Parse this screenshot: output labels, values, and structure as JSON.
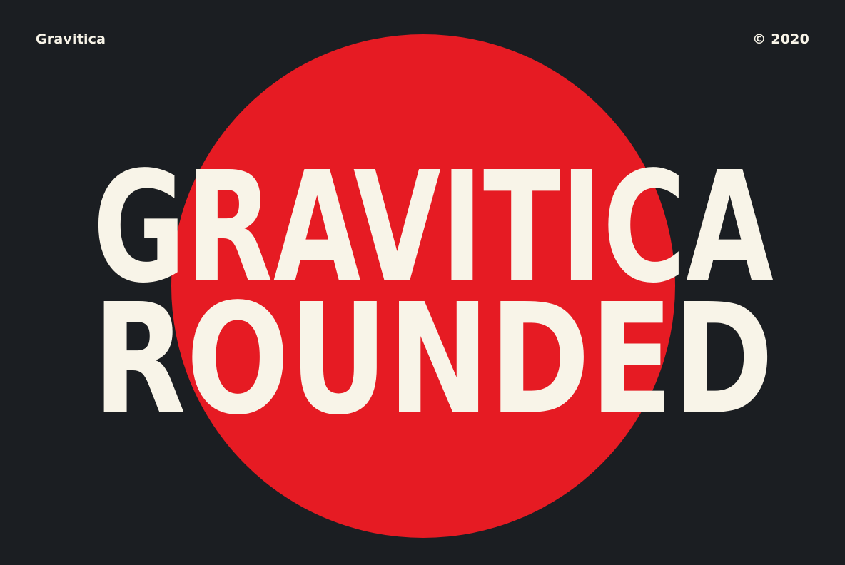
{
  "brand": "Gravitica",
  "copyright": "© 2020",
  "headline": {
    "line1": "GRAVITICA",
    "line2": "ROUNDED"
  },
  "colors": {
    "background": "#1b1e22",
    "circle": "#e61b23",
    "text": "#f8f4e8"
  }
}
